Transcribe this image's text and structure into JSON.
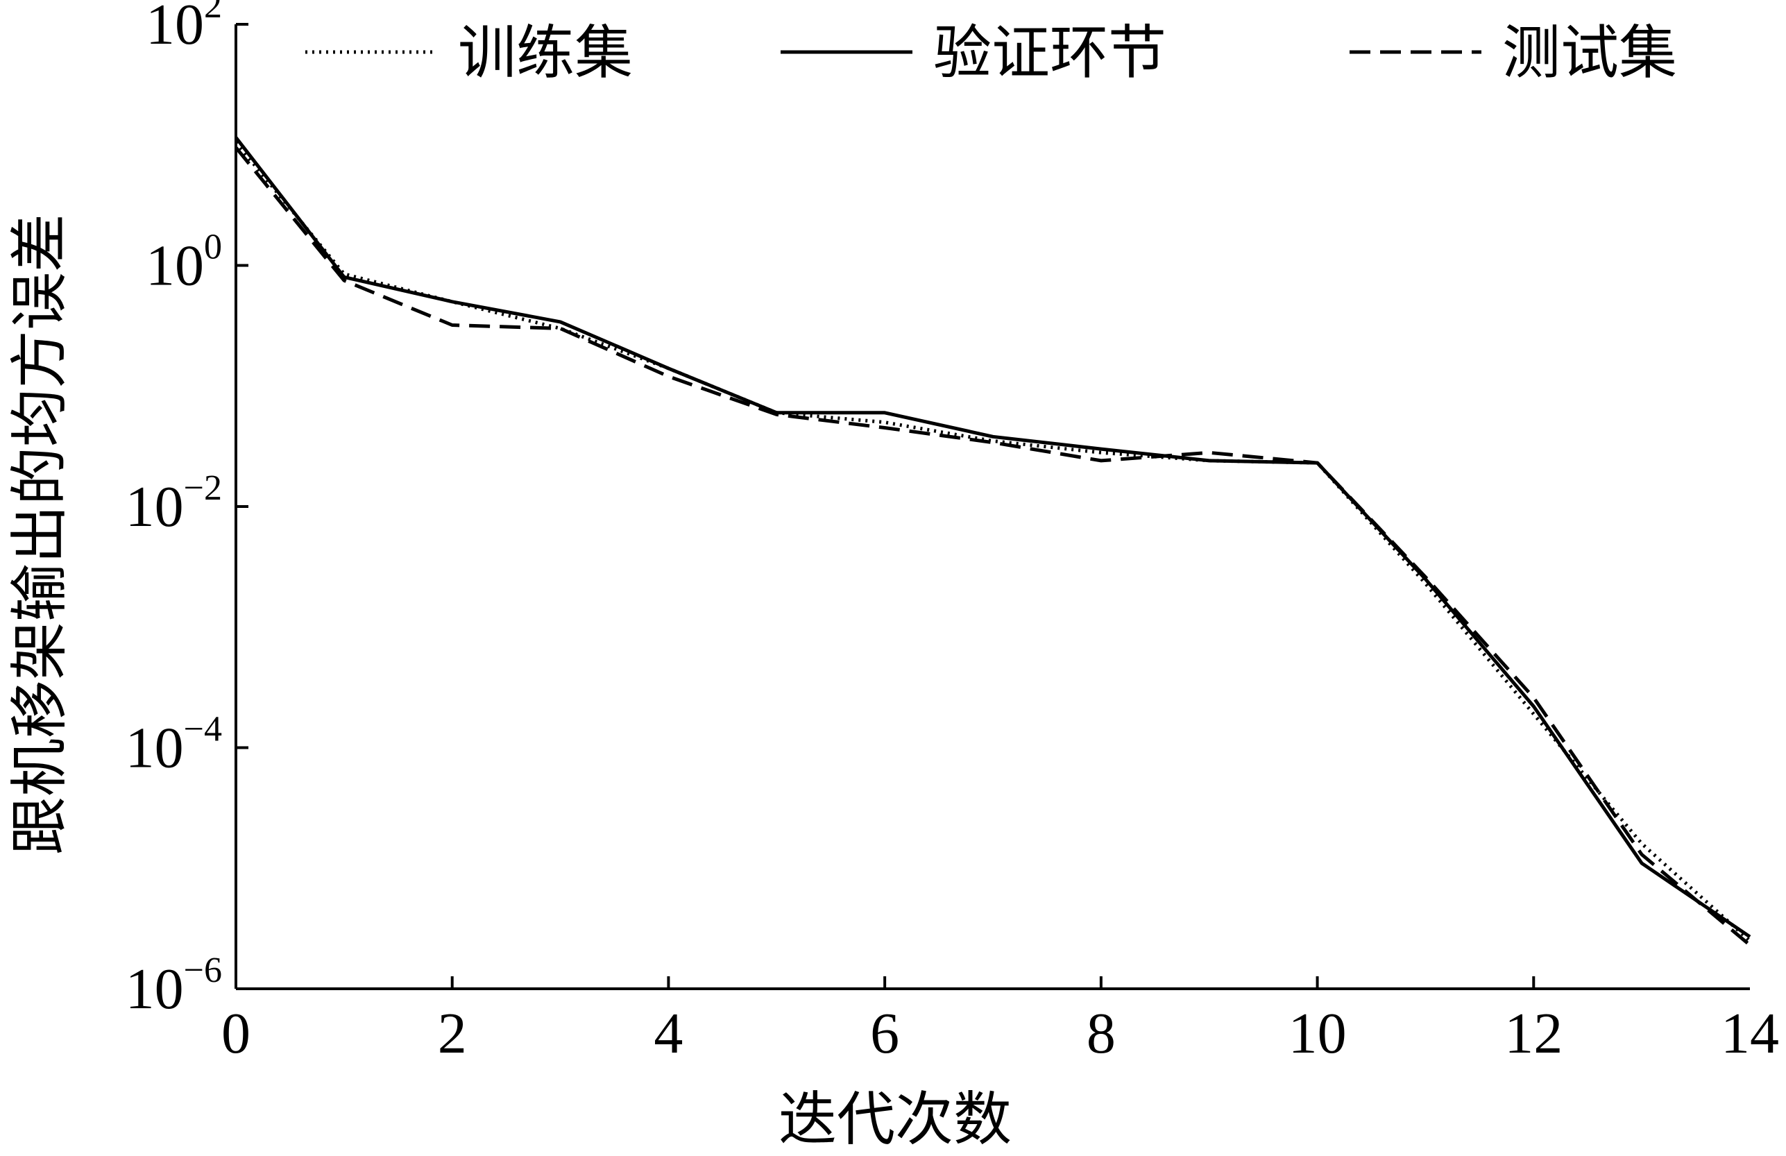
{
  "chart_data": {
    "type": "line",
    "xlabel": "迭代次数",
    "ylabel": "跟机移架输出的均方误差",
    "yscale": "log",
    "xlim": [
      0,
      14
    ],
    "ylim": [
      1e-06,
      100
    ],
    "xticks": [
      {
        "value": 0,
        "label": "0"
      },
      {
        "value": 2,
        "label": "2"
      },
      {
        "value": 4,
        "label": "4"
      },
      {
        "value": 6,
        "label": "6"
      },
      {
        "value": 8,
        "label": "8"
      },
      {
        "value": 10,
        "label": "10"
      },
      {
        "value": 12,
        "label": "12"
      },
      {
        "value": 14,
        "label": "14"
      }
    ],
    "yticks": [
      {
        "value": 100,
        "base": "10",
        "exp": "2"
      },
      {
        "value": 1,
        "base": "10",
        "exp": "0"
      },
      {
        "value": 0.01,
        "base": "10",
        "exp": "−2"
      },
      {
        "value": 0.0001,
        "base": "10",
        "exp": "−4"
      },
      {
        "value": 1e-06,
        "base": "10",
        "exp": "−6"
      }
    ],
    "grid": false,
    "legend_position": "top",
    "x": [
      0,
      1,
      2,
      3,
      4,
      5,
      6,
      7,
      8,
      9,
      10,
      11,
      12,
      13,
      14
    ],
    "series": [
      {
        "name": "训练集",
        "style": "dotted",
        "color": "#000000",
        "values": [
          10.5,
          0.85,
          0.5,
          0.3,
          0.14,
          0.06,
          0.05,
          0.035,
          0.028,
          0.024,
          0.023,
          0.0023,
          0.00019,
          1.6e-05,
          2.5e-06
        ]
      },
      {
        "name": "验证环节",
        "style": "solid",
        "color": "#000000",
        "values": [
          11.5,
          0.8,
          0.5,
          0.34,
          0.14,
          0.06,
          0.06,
          0.038,
          0.03,
          0.024,
          0.023,
          0.0025,
          0.00022,
          1.1e-05,
          2.7e-06
        ]
      },
      {
        "name": "测试集",
        "style": "dashed",
        "color": "#000000",
        "values": [
          9.5,
          0.75,
          0.32,
          0.3,
          0.12,
          0.058,
          0.045,
          0.034,
          0.024,
          0.028,
          0.023,
          0.0026,
          0.00026,
          1.3e-05,
          2.3e-06
        ]
      }
    ]
  }
}
